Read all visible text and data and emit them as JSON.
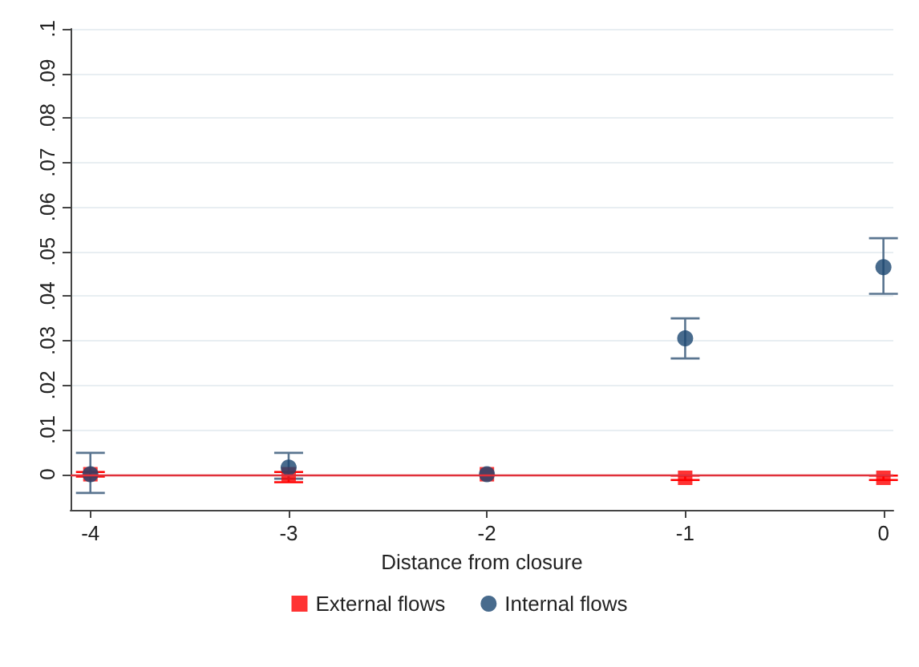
{
  "chart_data": {
    "type": "scatter",
    "xlabel": "Distance from closure",
    "xlim": [
      -4.1,
      0.05
    ],
    "xticks": [
      -4,
      -3,
      -2,
      -1,
      0
    ],
    "ylim": [
      -0.008,
      0.1
    ],
    "yticks": [
      {
        "value": 0,
        "label": "0"
      },
      {
        "value": 0.01,
        "label": ".01"
      },
      {
        "value": 0.02,
        "label": ".02"
      },
      {
        "value": 0.03,
        "label": ".03"
      },
      {
        "value": 0.04,
        "label": ".04"
      },
      {
        "value": 0.05,
        "label": ".05"
      },
      {
        "value": 0.06,
        "label": ".06"
      },
      {
        "value": 0.07,
        "label": ".07"
      },
      {
        "value": 0.08,
        "label": ".08"
      },
      {
        "value": 0.09,
        "label": ".09"
      },
      {
        "value": 0.1,
        "label": ".1"
      }
    ],
    "grid": "y",
    "legend": "bottom",
    "ref_lines": [
      {
        "axis": "y",
        "value": 0,
        "color": "#e0303a"
      }
    ],
    "series": [
      {
        "name": "External flows",
        "color": "#ff0000",
        "marker": "square",
        "x": [
          -4,
          -3,
          -2,
          -1,
          0
        ],
        "values": [
          0,
          0,
          0,
          -0.0008,
          -0.0008
        ],
        "errors": [
          [
            -0.0005,
            0.0005
          ],
          [
            -0.0018,
            0.0005
          ],
          null,
          [
            -0.0013,
            -0.0003
          ],
          [
            -0.0013,
            -0.0003
          ]
        ]
      },
      {
        "name": "Internal flows",
        "color": "#1a4670",
        "marker": "circle",
        "x": [
          -4,
          -3,
          -2,
          -1,
          0
        ],
        "values": [
          0,
          0.0015,
          0,
          0.0305,
          0.0465
        ],
        "errors": [
          [
            -0.0042,
            0.0048
          ],
          [
            -0.001,
            0.0048
          ],
          null,
          [
            0.026,
            0.035
          ],
          [
            0.0405,
            0.053
          ]
        ]
      }
    ]
  }
}
